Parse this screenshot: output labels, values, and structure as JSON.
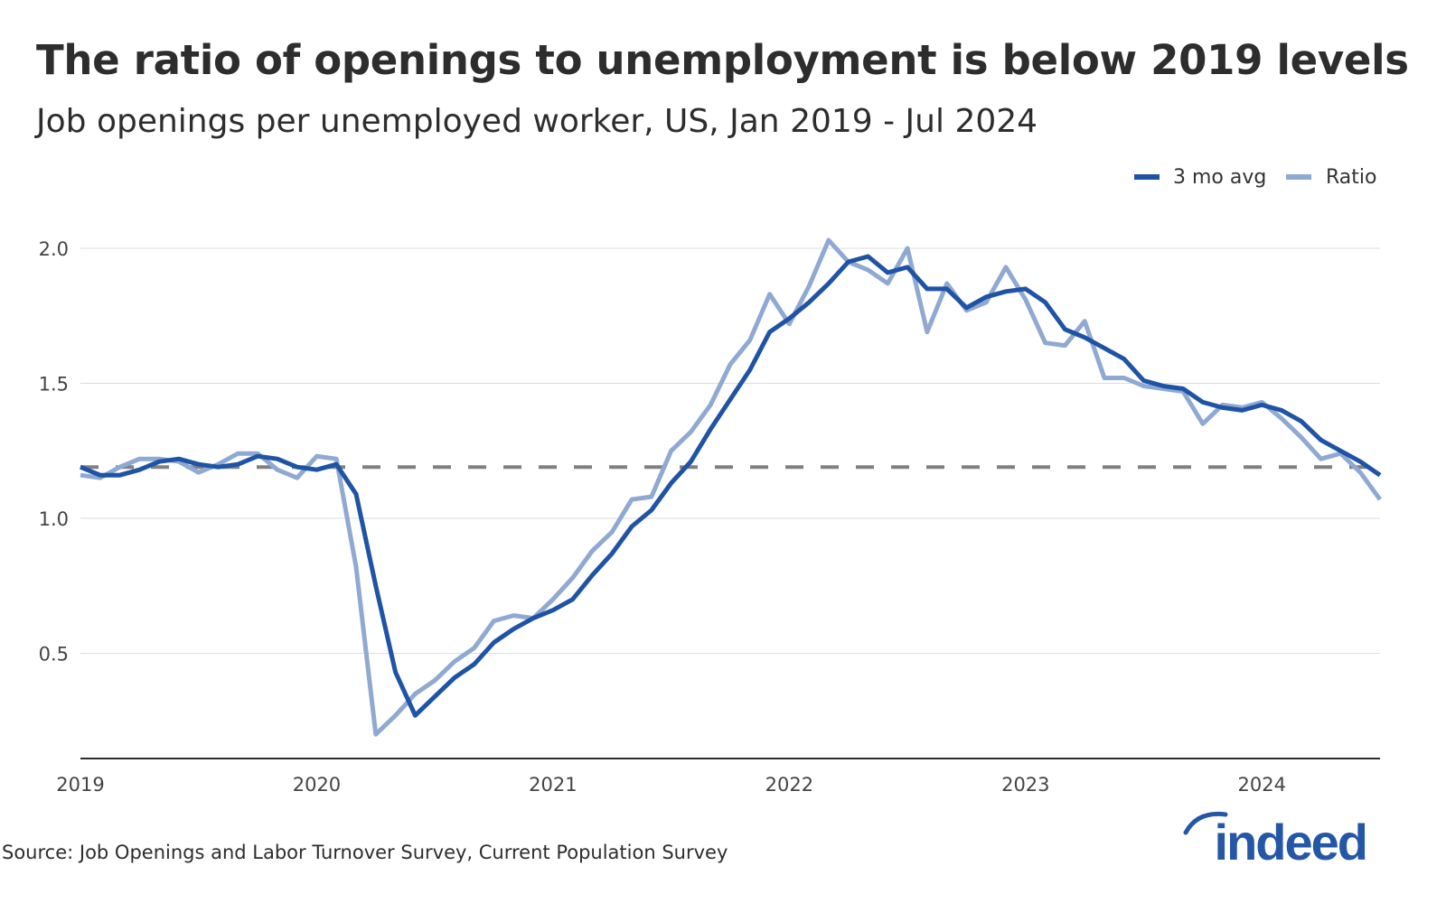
{
  "title": "The ratio of openings to unemployment is below 2019 levels",
  "subtitle": "Job openings per unemployed worker, US, Jan 2019 - Jul 2024",
  "source": "Source: Job Openings and Labor Turnover Survey, Current Population Survey",
  "logo": "indeed",
  "colors": {
    "avg": "#1f53a5",
    "ratio": "#8fa9d3",
    "reference": "#808080",
    "grid": "#dddddd",
    "axis": "#2d2d2d",
    "logo": "#2557a7"
  },
  "chart_data": {
    "type": "line",
    "start": "2019-01",
    "end": "2024-07",
    "frequency": "monthly",
    "xticks": [
      "2019",
      "2020",
      "2021",
      "2022",
      "2023",
      "2024"
    ],
    "yticks": [
      "0.5",
      "1.0",
      "1.5",
      "2.0"
    ],
    "ylim": [
      0.11,
      2.2
    ],
    "grid": true,
    "legend": "top-right",
    "reference_line": {
      "value": 1.19,
      "style": "dashed"
    },
    "series": [
      {
        "name": "3 mo avg",
        "color": "#1f53a5",
        "values": [
          1.19,
          1.16,
          1.16,
          1.18,
          1.21,
          1.22,
          1.2,
          1.19,
          1.2,
          1.23,
          1.22,
          1.19,
          1.18,
          1.2,
          1.09,
          0.75,
          0.43,
          0.27,
          0.34,
          0.41,
          0.46,
          0.54,
          0.59,
          0.63,
          0.66,
          0.7,
          0.79,
          0.87,
          0.97,
          1.03,
          1.13,
          1.21,
          1.33,
          1.44,
          1.55,
          1.69,
          1.74,
          1.8,
          1.87,
          1.95,
          1.97,
          1.91,
          1.93,
          1.85,
          1.85,
          1.78,
          1.82,
          1.84,
          1.85,
          1.8,
          1.7,
          1.67,
          1.63,
          1.59,
          1.51,
          1.49,
          1.48,
          1.43,
          1.41,
          1.4,
          1.42,
          1.4,
          1.36,
          1.29,
          1.25,
          1.21,
          1.16
        ]
      },
      {
        "name": "Ratio",
        "color": "#8fa9d3",
        "values": [
          1.16,
          1.15,
          1.19,
          1.22,
          1.22,
          1.21,
          1.17,
          1.2,
          1.24,
          1.24,
          1.18,
          1.15,
          1.23,
          1.22,
          0.82,
          0.2,
          0.27,
          0.35,
          0.4,
          0.47,
          0.52,
          0.62,
          0.64,
          0.63,
          0.7,
          0.78,
          0.88,
          0.95,
          1.07,
          1.08,
          1.25,
          1.32,
          1.42,
          1.57,
          1.66,
          1.83,
          1.72,
          1.86,
          2.03,
          1.95,
          1.92,
          1.87,
          2.0,
          1.69,
          1.87,
          1.77,
          1.8,
          1.93,
          1.81,
          1.65,
          1.64,
          1.73,
          1.52,
          1.52,
          1.49,
          1.48,
          1.47,
          1.35,
          1.42,
          1.41,
          1.43,
          1.37,
          1.3,
          1.22,
          1.24,
          1.17,
          1.07
        ]
      }
    ]
  }
}
